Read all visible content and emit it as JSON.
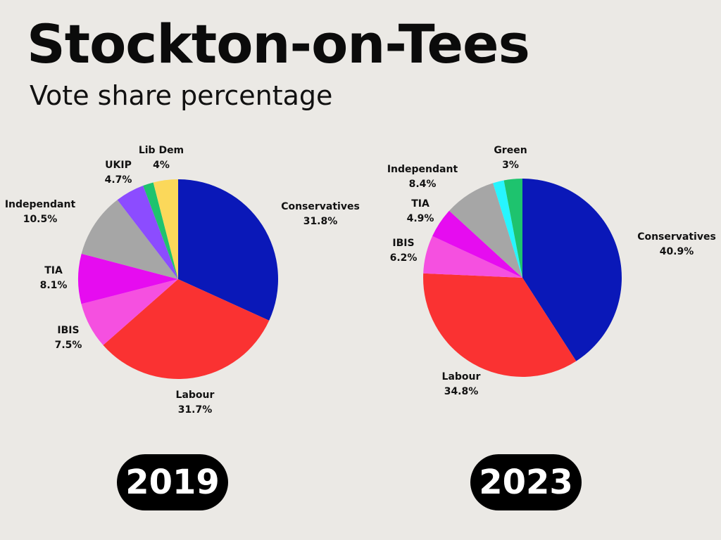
{
  "title": "Stockton-on-Tees",
  "subtitle": "Vote share percentage",
  "chart_data": [
    {
      "type": "pie",
      "year_label": "2019",
      "slices": [
        {
          "name": "Conservatives",
          "value": 31.8,
          "label": "31.8%",
          "color": "#0a18b8"
        },
        {
          "name": "Labour",
          "value": 31.7,
          "label": "31.7%",
          "color": "#fa3232"
        },
        {
          "name": "IBIS",
          "value": 7.5,
          "label": "7.5%",
          "color": "#f550e0"
        },
        {
          "name": "TIA",
          "value": 8.1,
          "label": "8.1%",
          "color": "#e60cf0"
        },
        {
          "name": "Independant",
          "value": 10.5,
          "label": "10.5%",
          "color": "#a6a6a6"
        },
        {
          "name": "UKIP",
          "value": 4.7,
          "label": "4.7%",
          "color": "#8c4cff"
        },
        {
          "name": "",
          "value": 1.7,
          "label": "",
          "color": "#1ec36e"
        },
        {
          "name": "Lib Dem",
          "value": 4,
          "label": "4%",
          "color": "#fbd85a"
        }
      ]
    },
    {
      "type": "pie",
      "year_label": "2023",
      "slices": [
        {
          "name": "Conservatives",
          "value": 40.9,
          "label": "40.9%",
          "color": "#0a18b8"
        },
        {
          "name": "Labour",
          "value": 34.8,
          "label": "34.8%",
          "color": "#fa3232"
        },
        {
          "name": "IBIS",
          "value": 6.2,
          "label": "6.2%",
          "color": "#f550e0"
        },
        {
          "name": "TIA",
          "value": 4.9,
          "label": "4.9%",
          "color": "#e60cf0"
        },
        {
          "name": "Independant",
          "value": 8.4,
          "label": "8.4%",
          "color": "#a6a6a6"
        },
        {
          "name": "",
          "value": 1.8,
          "label": "",
          "color": "#27f5ff"
        },
        {
          "name": "Green",
          "value": 3,
          "label": "3%",
          "color": "#1ec36e"
        }
      ]
    }
  ]
}
